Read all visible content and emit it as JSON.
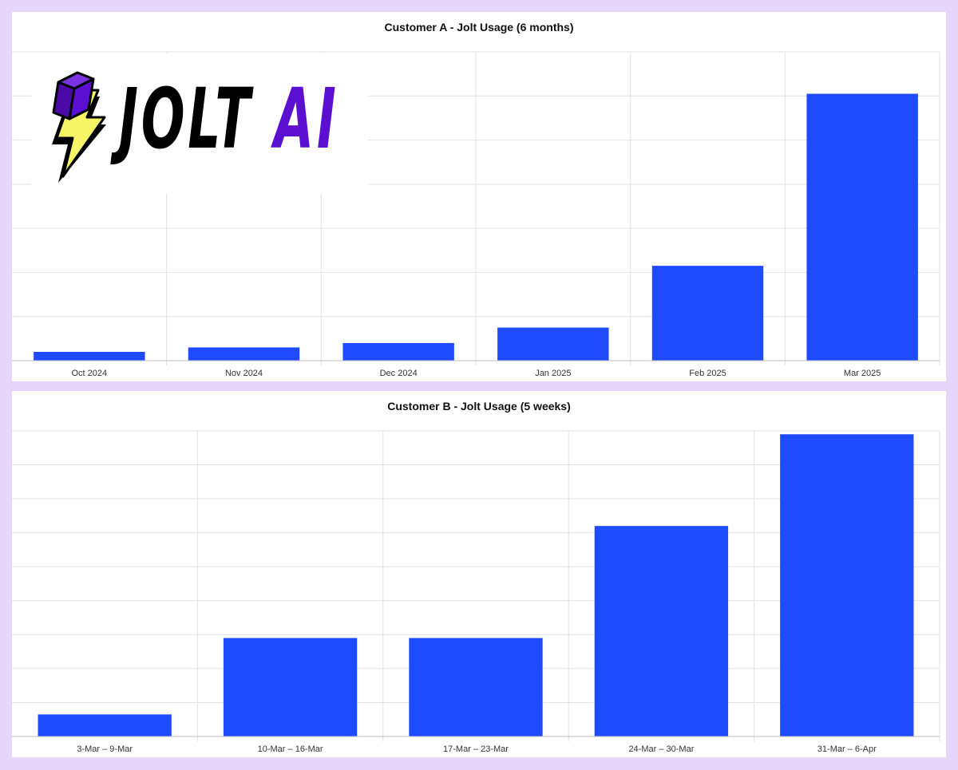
{
  "colors": {
    "background": "#e6d6fb",
    "bar": "#1f4bff",
    "grid": "#e2e2e2",
    "axis": "#bdbdbd",
    "logo_purple": "#5b0fd1",
    "logo_yellow": "#f7f566"
  },
  "logo": {
    "icon": "lightning-bolt-icon",
    "word_main": "JOLT",
    "word_accent": "AI"
  },
  "chart_data": [
    {
      "type": "bar",
      "title": "Customer A - Jolt Usage (6 months)",
      "categories": [
        "Oct 2024",
        "Nov 2024",
        "Dec 2024",
        "Jan 2025",
        "Feb 2025",
        "Mar 2025"
      ],
      "values": [
        2,
        3,
        4,
        7.5,
        21.5,
        60.5
      ],
      "ylim": [
        0,
        70
      ],
      "grid": true,
      "xlabel": "",
      "ylabel": ""
    },
    {
      "type": "bar",
      "title": "Customer B - Jolt Usage (5 weeks)",
      "categories": [
        "3-Mar – 9-Mar",
        "10-Mar – 16-Mar",
        "17-Mar – 23-Mar",
        "24-Mar – 30-Mar",
        "31-Mar – 6-Apr"
      ],
      "values": [
        6.5,
        29,
        29,
        62,
        89
      ],
      "ylim": [
        0,
        90
      ],
      "grid": true,
      "xlabel": "",
      "ylabel": ""
    }
  ]
}
